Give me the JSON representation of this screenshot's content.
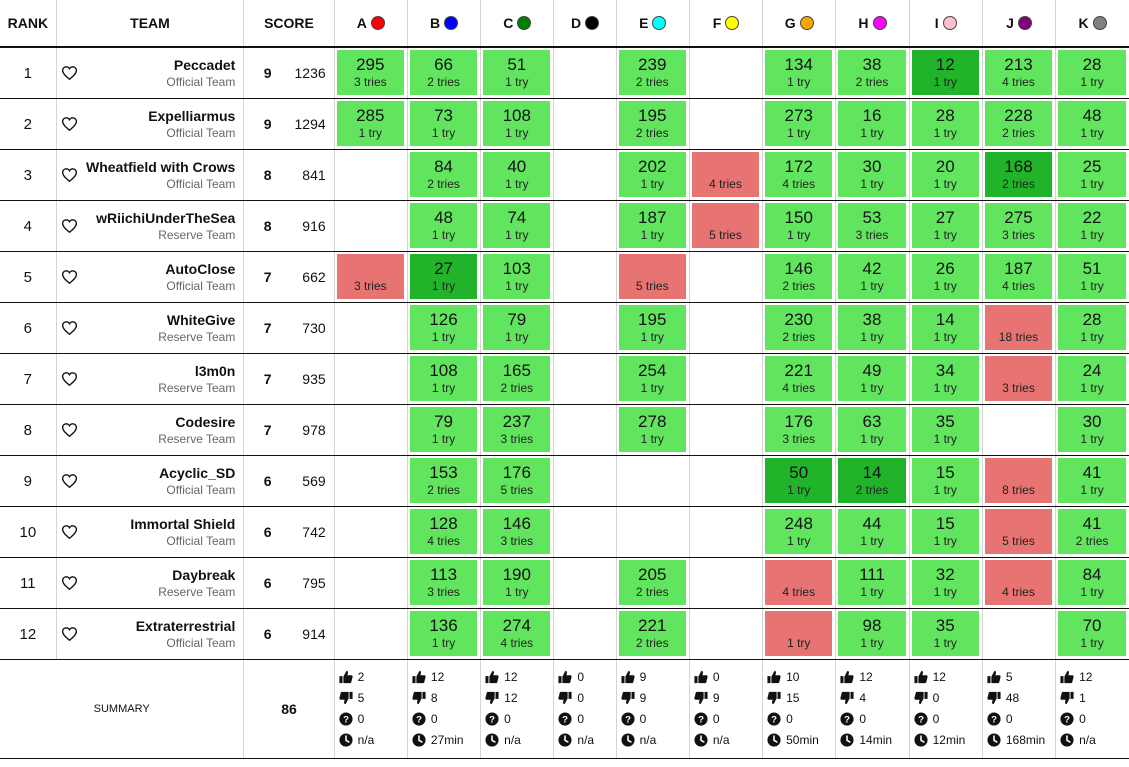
{
  "header": {
    "rank": "RANK",
    "team": "TEAM",
    "score": "SCORE"
  },
  "problems": [
    {
      "letter": "A",
      "color": "#ff0000"
    },
    {
      "letter": "B",
      "color": "#0000ff"
    },
    {
      "letter": "C",
      "color": "#008000"
    },
    {
      "letter": "D",
      "color": "#000000"
    },
    {
      "letter": "E",
      "color": "#00ffff"
    },
    {
      "letter": "F",
      "color": "#ffff00"
    },
    {
      "letter": "G",
      "color": "#ffa500"
    },
    {
      "letter": "H",
      "color": "#ff00ff"
    },
    {
      "letter": "I",
      "color": "#ffc0cb"
    },
    {
      "letter": "J",
      "color": "#800080"
    },
    {
      "letter": "K",
      "color": "#808080"
    }
  ],
  "teams": [
    {
      "rank": "1",
      "name": "Peccadet",
      "type": "Official Team",
      "solved": "9",
      "penalty": "1236",
      "cells": [
        {
          "status": "ac",
          "time": "295",
          "tries": "3 tries"
        },
        {
          "status": "ac",
          "time": "66",
          "tries": "2 tries"
        },
        {
          "status": "ac",
          "time": "51",
          "tries": "1 try"
        },
        null,
        {
          "status": "ac",
          "time": "239",
          "tries": "2 tries"
        },
        null,
        {
          "status": "ac",
          "time": "134",
          "tries": "1 try"
        },
        {
          "status": "ac",
          "time": "38",
          "tries": "2 tries"
        },
        {
          "status": "fb",
          "time": "12",
          "tries": "1 try"
        },
        {
          "status": "ac",
          "time": "213",
          "tries": "4 tries"
        },
        {
          "status": "ac",
          "time": "28",
          "tries": "1 try"
        }
      ]
    },
    {
      "rank": "2",
      "name": "Expelliarmus",
      "type": "Official Team",
      "solved": "9",
      "penalty": "1294",
      "cells": [
        {
          "status": "ac",
          "time": "285",
          "tries": "1 try"
        },
        {
          "status": "ac",
          "time": "73",
          "tries": "1 try"
        },
        {
          "status": "ac",
          "time": "108",
          "tries": "1 try"
        },
        null,
        {
          "status": "ac",
          "time": "195",
          "tries": "2 tries"
        },
        null,
        {
          "status": "ac",
          "time": "273",
          "tries": "1 try"
        },
        {
          "status": "ac",
          "time": "16",
          "tries": "1 try"
        },
        {
          "status": "ac",
          "time": "28",
          "tries": "1 try"
        },
        {
          "status": "ac",
          "time": "228",
          "tries": "2 tries"
        },
        {
          "status": "ac",
          "time": "48",
          "tries": "1 try"
        }
      ]
    },
    {
      "rank": "3",
      "name": "Wheatfield with Crows",
      "type": "Official Team",
      "solved": "8",
      "penalty": "841",
      "cells": [
        null,
        {
          "status": "ac",
          "time": "84",
          "tries": "2 tries"
        },
        {
          "status": "ac",
          "time": "40",
          "tries": "1 try"
        },
        null,
        {
          "status": "ac",
          "time": "202",
          "tries": "1 try"
        },
        {
          "status": "wa",
          "time": "",
          "tries": "4 tries"
        },
        {
          "status": "ac",
          "time": "172",
          "tries": "4 tries"
        },
        {
          "status": "ac",
          "time": "30",
          "tries": "1 try"
        },
        {
          "status": "ac",
          "time": "20",
          "tries": "1 try"
        },
        {
          "status": "fb",
          "time": "168",
          "tries": "2 tries"
        },
        {
          "status": "ac",
          "time": "25",
          "tries": "1 try"
        }
      ]
    },
    {
      "rank": "4",
      "name": "wRiichiUnderTheSea",
      "type": "Reserve Team",
      "solved": "8",
      "penalty": "916",
      "cells": [
        null,
        {
          "status": "ac",
          "time": "48",
          "tries": "1 try"
        },
        {
          "status": "ac",
          "time": "74",
          "tries": "1 try"
        },
        null,
        {
          "status": "ac",
          "time": "187",
          "tries": "1 try"
        },
        {
          "status": "wa",
          "time": "",
          "tries": "5 tries"
        },
        {
          "status": "ac",
          "time": "150",
          "tries": "1 try"
        },
        {
          "status": "ac",
          "time": "53",
          "tries": "3 tries"
        },
        {
          "status": "ac",
          "time": "27",
          "tries": "1 try"
        },
        {
          "status": "ac",
          "time": "275",
          "tries": "3 tries"
        },
        {
          "status": "ac",
          "time": "22",
          "tries": "1 try"
        }
      ]
    },
    {
      "rank": "5",
      "name": "AutoClose",
      "type": "Official Team",
      "solved": "7",
      "penalty": "662",
      "cells": [
        {
          "status": "wa",
          "time": "",
          "tries": "3 tries"
        },
        {
          "status": "fb",
          "time": "27",
          "tries": "1 try"
        },
        {
          "status": "ac",
          "time": "103",
          "tries": "1 try"
        },
        null,
        {
          "status": "wa",
          "time": "",
          "tries": "5 tries"
        },
        null,
        {
          "status": "ac",
          "time": "146",
          "tries": "2 tries"
        },
        {
          "status": "ac",
          "time": "42",
          "tries": "1 try"
        },
        {
          "status": "ac",
          "time": "26",
          "tries": "1 try"
        },
        {
          "status": "ac",
          "time": "187",
          "tries": "4 tries"
        },
        {
          "status": "ac",
          "time": "51",
          "tries": "1 try"
        }
      ]
    },
    {
      "rank": "6",
      "name": "WhiteGive",
      "type": "Reserve Team",
      "solved": "7",
      "penalty": "730",
      "cells": [
        null,
        {
          "status": "ac",
          "time": "126",
          "tries": "1 try"
        },
        {
          "status": "ac",
          "time": "79",
          "tries": "1 try"
        },
        null,
        {
          "status": "ac",
          "time": "195",
          "tries": "1 try"
        },
        null,
        {
          "status": "ac",
          "time": "230",
          "tries": "2 tries"
        },
        {
          "status": "ac",
          "time": "38",
          "tries": "1 try"
        },
        {
          "status": "ac",
          "time": "14",
          "tries": "1 try"
        },
        {
          "status": "wa",
          "time": "",
          "tries": "18 tries"
        },
        {
          "status": "ac",
          "time": "28",
          "tries": "1 try"
        }
      ]
    },
    {
      "rank": "7",
      "name": "l3m0n",
      "type": "Reserve Team",
      "solved": "7",
      "penalty": "935",
      "cells": [
        null,
        {
          "status": "ac",
          "time": "108",
          "tries": "1 try"
        },
        {
          "status": "ac",
          "time": "165",
          "tries": "2 tries"
        },
        null,
        {
          "status": "ac",
          "time": "254",
          "tries": "1 try"
        },
        null,
        {
          "status": "ac",
          "time": "221",
          "tries": "4 tries"
        },
        {
          "status": "ac",
          "time": "49",
          "tries": "1 try"
        },
        {
          "status": "ac",
          "time": "34",
          "tries": "1 try"
        },
        {
          "status": "wa",
          "time": "",
          "tries": "3 tries"
        },
        {
          "status": "ac",
          "time": "24",
          "tries": "1 try"
        }
      ]
    },
    {
      "rank": "8",
      "name": "Codesire",
      "type": "Reserve Team",
      "solved": "7",
      "penalty": "978",
      "cells": [
        null,
        {
          "status": "ac",
          "time": "79",
          "tries": "1 try"
        },
        {
          "status": "ac",
          "time": "237",
          "tries": "3 tries"
        },
        null,
        {
          "status": "ac",
          "time": "278",
          "tries": "1 try"
        },
        null,
        {
          "status": "ac",
          "time": "176",
          "tries": "3 tries"
        },
        {
          "status": "ac",
          "time": "63",
          "tries": "1 try"
        },
        {
          "status": "ac",
          "time": "35",
          "tries": "1 try"
        },
        null,
        {
          "status": "ac",
          "time": "30",
          "tries": "1 try"
        }
      ]
    },
    {
      "rank": "9",
      "name": "Acyclic_SD",
      "type": "Official Team",
      "solved": "6",
      "penalty": "569",
      "cells": [
        null,
        {
          "status": "ac",
          "time": "153",
          "tries": "2 tries"
        },
        {
          "status": "ac",
          "time": "176",
          "tries": "5 tries"
        },
        null,
        null,
        null,
        {
          "status": "fb",
          "time": "50",
          "tries": "1 try"
        },
        {
          "status": "fb",
          "time": "14",
          "tries": "2 tries"
        },
        {
          "status": "ac",
          "time": "15",
          "tries": "1 try"
        },
        {
          "status": "wa",
          "time": "",
          "tries": "8 tries"
        },
        {
          "status": "ac",
          "time": "41",
          "tries": "1 try"
        }
      ]
    },
    {
      "rank": "10",
      "name": "Immortal Shield",
      "type": "Official Team",
      "solved": "6",
      "penalty": "742",
      "cells": [
        null,
        {
          "status": "ac",
          "time": "128",
          "tries": "4 tries"
        },
        {
          "status": "ac",
          "time": "146",
          "tries": "3 tries"
        },
        null,
        null,
        null,
        {
          "status": "ac",
          "time": "248",
          "tries": "1 try"
        },
        {
          "status": "ac",
          "time": "44",
          "tries": "1 try"
        },
        {
          "status": "ac",
          "time": "15",
          "tries": "1 try"
        },
        {
          "status": "wa",
          "time": "",
          "tries": "5 tries"
        },
        {
          "status": "ac",
          "time": "41",
          "tries": "2 tries"
        }
      ]
    },
    {
      "rank": "11",
      "name": "Daybreak",
      "type": "Reserve Team",
      "solved": "6",
      "penalty": "795",
      "cells": [
        null,
        {
          "status": "ac",
          "time": "113",
          "tries": "3 tries"
        },
        {
          "status": "ac",
          "time": "190",
          "tries": "1 try"
        },
        null,
        {
          "status": "ac",
          "time": "205",
          "tries": "2 tries"
        },
        null,
        {
          "status": "wa",
          "time": "",
          "tries": "4 tries"
        },
        {
          "status": "ac",
          "time": "111",
          "tries": "1 try"
        },
        {
          "status": "ac",
          "time": "32",
          "tries": "1 try"
        },
        {
          "status": "wa",
          "time": "",
          "tries": "4 tries"
        },
        {
          "status": "ac",
          "time": "84",
          "tries": "1 try"
        }
      ]
    },
    {
      "rank": "12",
      "name": "Extraterrestrial",
      "type": "Official Team",
      "solved": "6",
      "penalty": "914",
      "cells": [
        null,
        {
          "status": "ac",
          "time": "136",
          "tries": "1 try"
        },
        {
          "status": "ac",
          "time": "274",
          "tries": "4 tries"
        },
        null,
        {
          "status": "ac",
          "time": "221",
          "tries": "2 tries"
        },
        null,
        {
          "status": "wa",
          "time": "",
          "tries": "1 try"
        },
        {
          "status": "ac",
          "time": "98",
          "tries": "1 try"
        },
        {
          "status": "ac",
          "time": "35",
          "tries": "1 try"
        },
        null,
        {
          "status": "ac",
          "time": "70",
          "tries": "1 try"
        }
      ]
    }
  ],
  "summary": {
    "label": "SUMMARY",
    "total": "86",
    "cells": [
      {
        "up": "2",
        "down": "5",
        "unknown": "0",
        "first": "n/a"
      },
      {
        "up": "12",
        "down": "8",
        "unknown": "0",
        "first": "27min"
      },
      {
        "up": "12",
        "down": "12",
        "unknown": "0",
        "first": "n/a"
      },
      {
        "up": "0",
        "down": "0",
        "unknown": "0",
        "first": "n/a"
      },
      {
        "up": "9",
        "down": "9",
        "unknown": "0",
        "first": "n/a"
      },
      {
        "up": "0",
        "down": "9",
        "unknown": "0",
        "first": "n/a"
      },
      {
        "up": "10",
        "down": "15",
        "unknown": "0",
        "first": "50min"
      },
      {
        "up": "12",
        "down": "4",
        "unknown": "0",
        "first": "14min"
      },
      {
        "up": "12",
        "down": "0",
        "unknown": "0",
        "first": "12min"
      },
      {
        "up": "5",
        "down": "48",
        "unknown": "0",
        "first": "168min"
      },
      {
        "up": "12",
        "down": "1",
        "unknown": "0",
        "first": "n/a"
      }
    ]
  }
}
